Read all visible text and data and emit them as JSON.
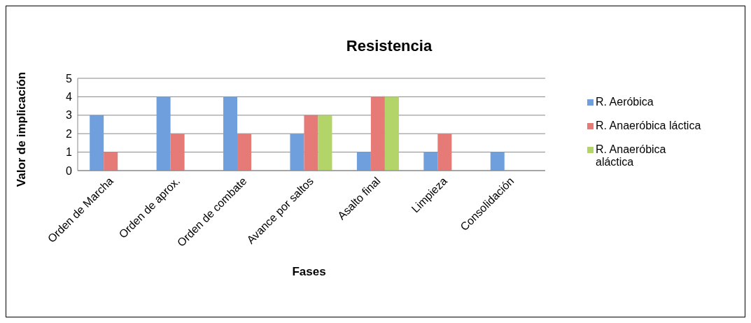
{
  "chart_data": {
    "type": "bar",
    "title": "Resistencia",
    "xlabel": "Fases",
    "ylabel": "Valor de implicación",
    "categories": [
      "Orden de Marcha",
      "Orden de aprox.",
      "Orden de combate",
      "Avance por saltos",
      "Asalto final",
      "Limpieza",
      "Consolidación"
    ],
    "series": [
      {
        "name": "R. Aeróbica",
        "color": "#6f9fdc",
        "values": [
          3,
          4,
          4,
          2,
          1,
          1,
          1
        ]
      },
      {
        "name": "R. Anaeróbica láctica",
        "color": "#e57a76",
        "values": [
          1,
          2,
          2,
          3,
          4,
          2,
          null
        ]
      },
      {
        "name": "R. Anaeróbica aláctica",
        "color": "#b2d468",
        "values": [
          null,
          null,
          null,
          3,
          4,
          null,
          null
        ]
      }
    ],
    "ylim": [
      0,
      5
    ],
    "yticks": [
      0,
      1,
      2,
      3,
      4,
      5
    ],
    "grid": "y",
    "legend": "right"
  }
}
